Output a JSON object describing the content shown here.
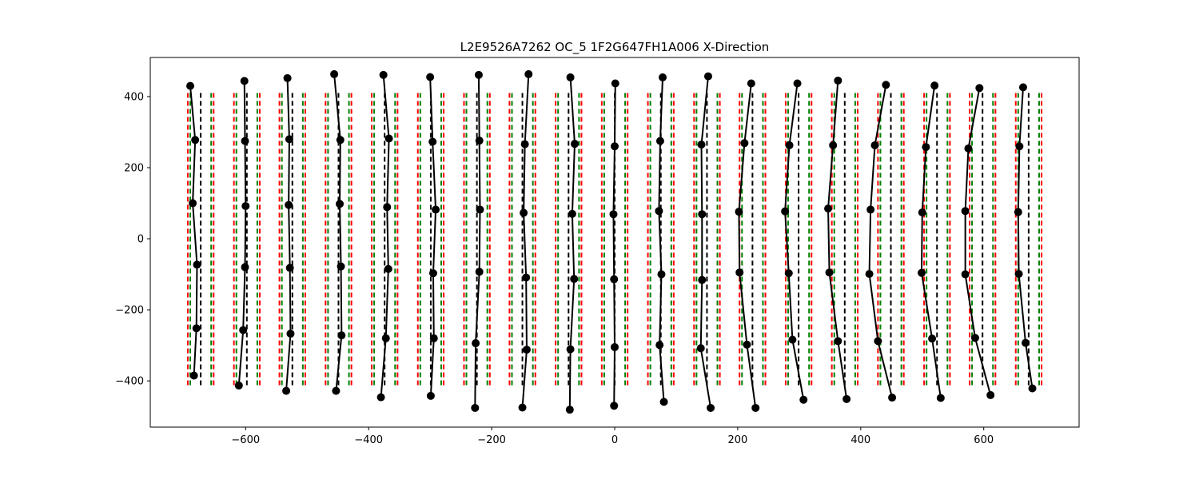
{
  "chart_data": {
    "type": "line",
    "title": "L2E9526A7262  OC_5  1F2G647FH1A006  X-Direction",
    "xlabel": "",
    "ylabel": "",
    "xlim": [
      -755,
      755
    ],
    "ylim": [
      -530,
      510
    ],
    "xticks": [
      -600,
      -400,
      -200,
      0,
      200,
      400,
      600
    ],
    "yticks": [
      -400,
      -200,
      0,
      200,
      400
    ],
    "xtick_labels": [
      "−600",
      "−400",
      "−200",
      "0",
      "200",
      "400",
      "600"
    ],
    "ytick_labels": [
      "−400",
      "−200",
      "0",
      "200",
      "400"
    ],
    "grid": false,
    "reference_lines": {
      "y_range": [
        -420,
        410
      ],
      "columns": [
        {
          "center": -673,
          "green": [
            -690,
            -656
          ],
          "red": [
            -694,
            -652
          ]
        },
        {
          "center": -598,
          "green": [
            -615,
            -581
          ],
          "red": [
            -619,
            -577
          ]
        },
        {
          "center": -524,
          "green": [
            -541,
            -507
          ],
          "red": [
            -545,
            -503
          ]
        },
        {
          "center": -449,
          "green": [
            -466,
            -432
          ],
          "red": [
            -470,
            -428
          ]
        },
        {
          "center": -374,
          "green": [
            -391,
            -357
          ],
          "red": [
            -395,
            -353
          ]
        },
        {
          "center": -299,
          "green": [
            -316,
            -282
          ],
          "red": [
            -320,
            -278
          ]
        },
        {
          "center": -224,
          "green": [
            -241,
            -207
          ],
          "red": [
            -245,
            -203
          ]
        },
        {
          "center": -150,
          "green": [
            -167,
            -133
          ],
          "red": [
            -171,
            -129
          ]
        },
        {
          "center": -75,
          "green": [
            -92,
            -58
          ],
          "red": [
            -96,
            -54
          ]
        },
        {
          "center": 0,
          "green": [
            -17,
            17
          ],
          "red": [
            -21,
            21
          ]
        },
        {
          "center": 75,
          "green": [
            58,
            92
          ],
          "red": [
            54,
            96
          ]
        },
        {
          "center": 150,
          "green": [
            133,
            167
          ],
          "red": [
            129,
            171
          ]
        },
        {
          "center": 224,
          "green": [
            207,
            241
          ],
          "red": [
            203,
            245
          ]
        },
        {
          "center": 299,
          "green": [
            282,
            316
          ],
          "red": [
            278,
            320
          ]
        },
        {
          "center": 374,
          "green": [
            357,
            391
          ],
          "red": [
            353,
            395
          ]
        },
        {
          "center": 449,
          "green": [
            432,
            466
          ],
          "red": [
            428,
            470
          ]
        },
        {
          "center": 524,
          "green": [
            507,
            541
          ],
          "red": [
            503,
            545
          ]
        },
        {
          "center": 598,
          "green": [
            581,
            615
          ],
          "red": [
            577,
            619
          ]
        },
        {
          "center": 673,
          "green": [
            656,
            690
          ],
          "red": [
            652,
            694
          ]
        }
      ]
    },
    "series": [
      {
        "x": [
          -690,
          -682,
          -686,
          -679,
          -680,
          -684
        ],
        "y": [
          430,
          278,
          100,
          -73,
          -252,
          -385
        ]
      },
      {
        "x": [
          -602,
          -601,
          -600,
          -601,
          -604,
          -611
        ],
        "y": [
          444,
          275,
          92,
          -80,
          -257,
          -413
        ]
      },
      {
        "x": [
          -532,
          -529,
          -530,
          -528,
          -527,
          -534
        ],
        "y": [
          452,
          280,
          95,
          -82,
          -267,
          -428
        ]
      },
      {
        "x": [
          -456,
          -446,
          -447,
          -445,
          -444,
          -453
        ],
        "y": [
          463,
          278,
          98,
          -78,
          -272,
          -428
        ]
      },
      {
        "x": [
          -376,
          -367,
          -370,
          -368,
          -372,
          -380
        ],
        "y": [
          461,
          282,
          89,
          -85,
          -280,
          -446
        ]
      },
      {
        "x": [
          -300,
          -296,
          -291,
          -295,
          -294,
          -299
        ],
        "y": [
          455,
          273,
          82,
          -97,
          -280,
          -442
        ]
      },
      {
        "x": [
          -221,
          -220,
          -219,
          -220,
          -226,
          -227
        ],
        "y": [
          461,
          276,
          82,
          -93,
          -294,
          -476
        ]
      },
      {
        "x": [
          -140,
          -146,
          -148,
          -144,
          -143,
          -150
        ],
        "y": [
          463,
          266,
          73,
          -109,
          -312,
          -475
        ]
      },
      {
        "x": [
          -72,
          -65,
          -69,
          -66,
          -72,
          -73
        ],
        "y": [
          454,
          267,
          70,
          -113,
          -311,
          -481
        ]
      },
      {
        "x": [
          1,
          0,
          -2,
          -1,
          0,
          -1
        ],
        "y": [
          437,
          260,
          69,
          -114,
          -305,
          -470
        ]
      },
      {
        "x": [
          78,
          74,
          72,
          76,
          73,
          80
        ],
        "y": [
          454,
          275,
          78,
          -100,
          -299,
          -459
        ]
      },
      {
        "x": [
          152,
          141,
          142,
          142,
          140,
          156
        ],
        "y": [
          457,
          265,
          69,
          -116,
          -308,
          -476
        ]
      },
      {
        "x": [
          222,
          211,
          202,
          203,
          215,
          229
        ],
        "y": [
          437,
          269,
          76,
          -95,
          -298,
          -476
        ]
      },
      {
        "x": [
          297,
          284,
          277,
          283,
          289,
          307
        ],
        "y": [
          437,
          263,
          77,
          -97,
          -284,
          -453
        ]
      },
      {
        "x": [
          363,
          355,
          347,
          349,
          363,
          377
        ],
        "y": [
          445,
          263,
          85,
          -95,
          -288,
          -451
        ]
      },
      {
        "x": [
          441,
          423,
          416,
          414,
          428,
          451
        ],
        "y": [
          433,
          263,
          82,
          -99,
          -288,
          -447
        ]
      },
      {
        "x": [
          520,
          506,
          500,
          499,
          516,
          530
        ],
        "y": [
          431,
          258,
          74,
          -96,
          -281,
          -448
        ]
      },
      {
        "x": [
          593,
          575,
          570,
          570,
          586,
          611
        ],
        "y": [
          424,
          254,
          78,
          -100,
          -279,
          -440
        ]
      },
      {
        "x": [
          664,
          658,
          656,
          657,
          668,
          679
        ],
        "y": [
          426,
          260,
          75,
          -99,
          -293,
          -421
        ]
      }
    ]
  },
  "colors": {
    "center_line": "#000000",
    "inner_line": "#008000",
    "outer_line": "#ff0000",
    "series": "#000000"
  }
}
